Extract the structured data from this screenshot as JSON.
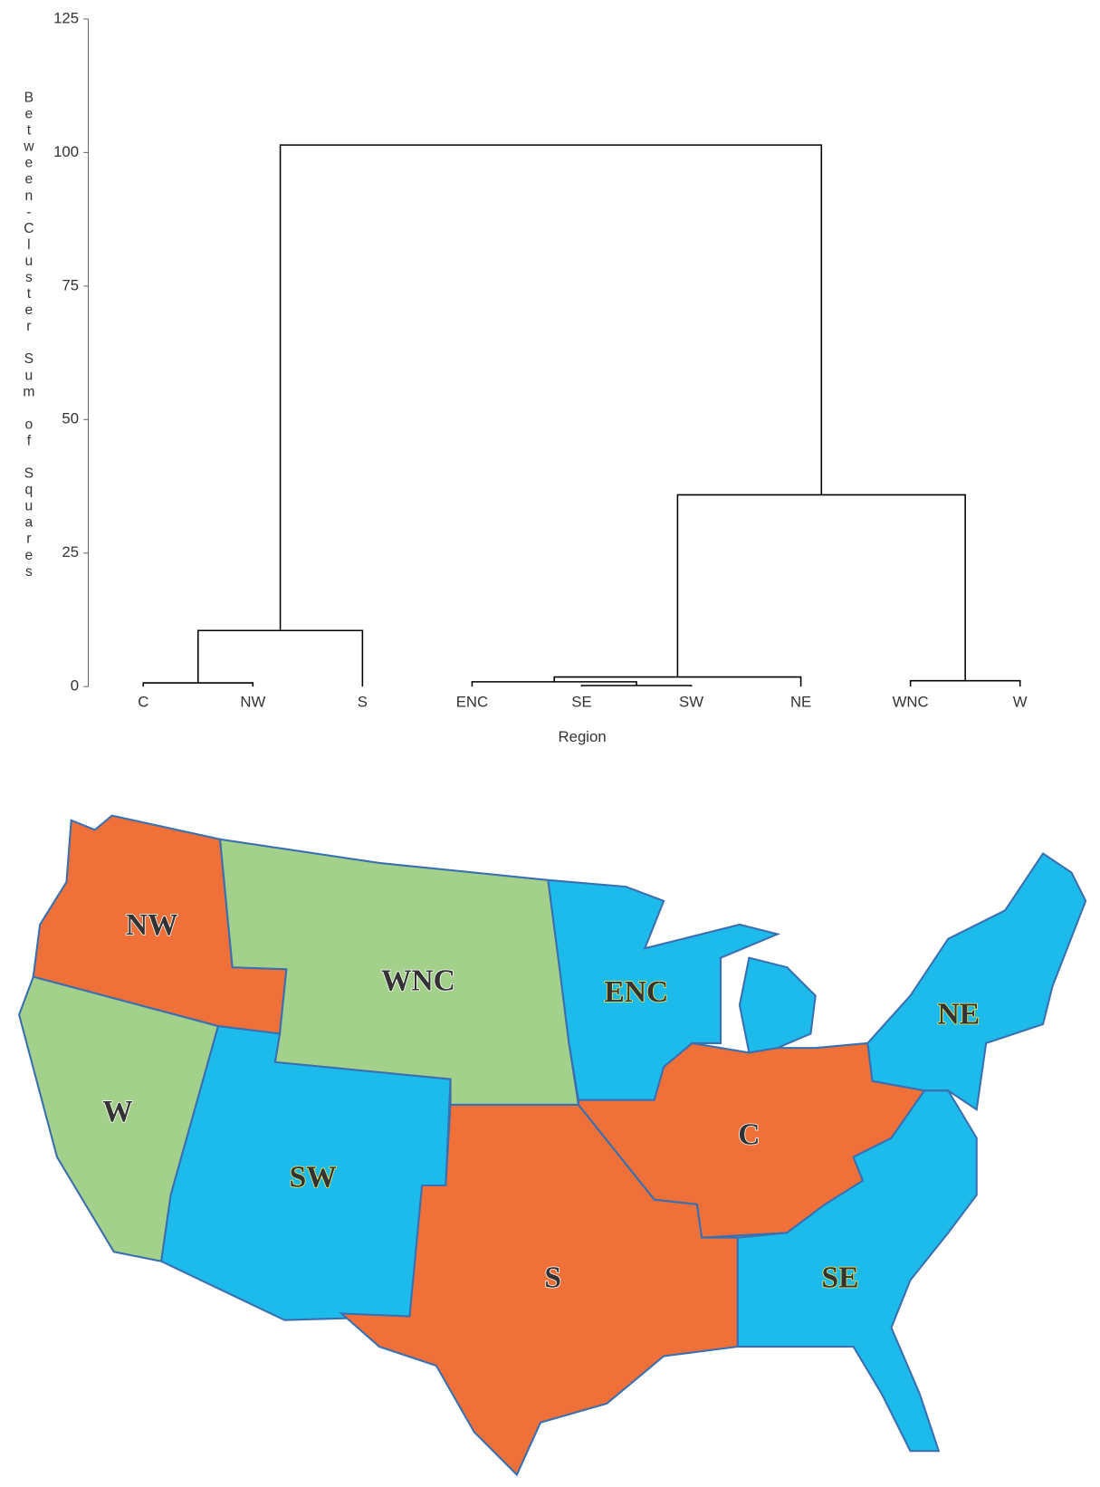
{
  "chart_data": {
    "type": "dendrogram",
    "ylabel": "Between-Cluster Sum of Squares",
    "xlabel": "Region",
    "categories": [
      "C",
      "NW",
      "S",
      "ENC",
      "SE",
      "SW",
      "NE",
      "WNC",
      "W"
    ],
    "merges": [
      {
        "children": [
          0,
          1
        ],
        "height": 0.7
      },
      {
        "children": [
          9,
          2
        ],
        "height": 10.5
      },
      {
        "children": [
          4,
          5
        ],
        "height": 0.2
      },
      {
        "children": [
          3,
          11
        ],
        "height": 0.9
      },
      {
        "children": [
          12,
          6
        ],
        "height": 1.8
      },
      {
        "children": [
          7,
          8
        ],
        "height": 1.1
      },
      {
        "children": [
          13,
          14
        ],
        "height": 35.9
      },
      {
        "children": [
          10,
          15
        ],
        "height": 101.4
      }
    ],
    "color": "#000000",
    "ylim": [
      0,
      125
    ],
    "yticks": [
      0,
      25,
      50,
      75,
      100,
      125
    ]
  },
  "map": {
    "regions": [
      {
        "label": "NW",
        "color": "#ef7139",
        "label_color": "#e8262b"
      },
      {
        "label": "WNC",
        "color": "#a3d18b",
        "label_color": "#1d6b2f"
      },
      {
        "label": "W",
        "color": "#a3d18b",
        "label_color": "#1d6b2f"
      },
      {
        "label": "SW",
        "color": "#1dbbec",
        "label_color": "#3b3a8f"
      },
      {
        "label": "ENC",
        "color": "#1dbbec",
        "label_color": "#3b3a8f"
      },
      {
        "label": "NE",
        "color": "#1dbbec",
        "label_color": "#3b3a8f"
      },
      {
        "label": "C",
        "color": "#ef7139",
        "label_color": "#e8262b"
      },
      {
        "label": "S",
        "color": "#ef7139",
        "label_color": "#e8262b"
      },
      {
        "label": "SE",
        "color": "#1dbbec",
        "label_color": "#3b3a8f"
      }
    ]
  }
}
